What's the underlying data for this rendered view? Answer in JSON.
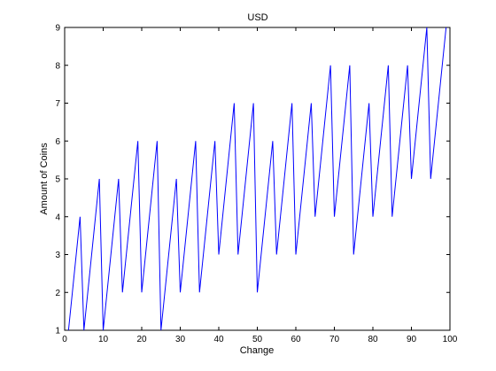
{
  "chart_data": {
    "type": "line",
    "title": "USD",
    "xlabel": "Change",
    "ylabel": "Amount of Coins",
    "xlim": [
      0,
      100
    ],
    "ylim": [
      1,
      9
    ],
    "xticks": [
      0,
      10,
      20,
      30,
      40,
      50,
      60,
      70,
      80,
      90,
      100
    ],
    "yticks": [
      1,
      2,
      3,
      4,
      5,
      6,
      7,
      8,
      9
    ],
    "grid": false,
    "line_color": "#0000ff",
    "series": [
      {
        "x": [
          1,
          2,
          3,
          4,
          5,
          6,
          7,
          8,
          9,
          10,
          11,
          12,
          13,
          14,
          15,
          16,
          17,
          18,
          19,
          20,
          21,
          22,
          23,
          24,
          25,
          26,
          27,
          28,
          29,
          30,
          31,
          32,
          33,
          34,
          35,
          36,
          37,
          38,
          39,
          40,
          41,
          42,
          43,
          44,
          45,
          46,
          47,
          48,
          49,
          50,
          51,
          52,
          53,
          54,
          55,
          56,
          57,
          58,
          59,
          60,
          61,
          62,
          63,
          64,
          65,
          66,
          67,
          68,
          69,
          70,
          71,
          72,
          73,
          74,
          75,
          76,
          77,
          78,
          79,
          80,
          81,
          82,
          83,
          84,
          85,
          86,
          87,
          88,
          89,
          90,
          91,
          92,
          93,
          94,
          95,
          96,
          97,
          98,
          99
        ],
        "y": [
          1,
          2,
          3,
          4,
          1,
          2,
          3,
          4,
          5,
          1,
          2,
          3,
          4,
          5,
          2,
          3,
          4,
          5,
          6,
          2,
          3,
          4,
          5,
          6,
          1,
          2,
          3,
          4,
          5,
          2,
          3,
          4,
          5,
          6,
          2,
          3,
          4,
          5,
          6,
          3,
          4,
          5,
          6,
          7,
          3,
          4,
          5,
          6,
          7,
          2,
          3,
          4,
          5,
          6,
          3,
          4,
          5,
          6,
          7,
          3,
          4,
          5,
          6,
          7,
          4,
          5,
          6,
          7,
          8,
          4,
          5,
          6,
          7,
          8,
          3,
          4,
          5,
          6,
          7,
          4,
          5,
          6,
          7,
          8,
          4,
          5,
          6,
          7,
          8,
          5,
          6,
          7,
          8,
          9,
          5,
          6,
          7,
          8,
          9
        ]
      }
    ]
  }
}
